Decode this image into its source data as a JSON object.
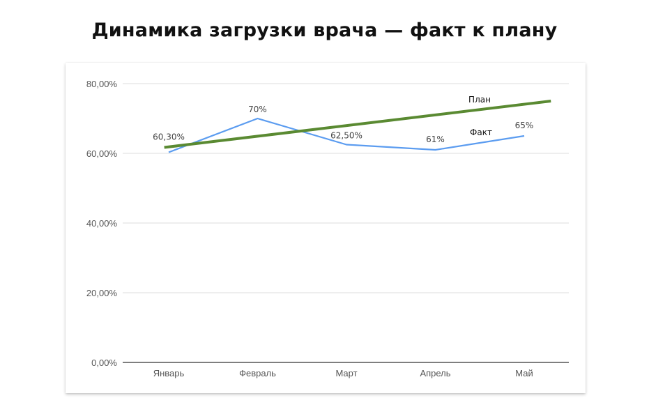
{
  "title": "Динамика загрузки врача — факт к плану",
  "chart_data": {
    "type": "line",
    "title": "Динамика загрузки врача — факт к плану",
    "categories": [
      "Январь",
      "Февраль",
      "Март",
      "Апрель",
      "Май"
    ],
    "y_ticks": [
      "0,00%",
      "20,00%",
      "40,00%",
      "60,00%",
      "80,00%"
    ],
    "y_tick_values": [
      0,
      20,
      40,
      60,
      80
    ],
    "ylim": [
      0,
      80
    ],
    "grid": true,
    "series": [
      {
        "name": "Факт",
        "values": [
          60.3,
          70,
          62.5,
          61,
          65
        ],
        "labels": [
          "60,30%",
          "70%",
          "62,50%",
          "61%",
          "65%"
        ],
        "color": "#5b9cf0"
      },
      {
        "name": "План",
        "x_start": -0.05,
        "x_end": 4.3,
        "y_start": 61.7,
        "y_end": 75,
        "color": "#5a8a32"
      }
    ]
  }
}
